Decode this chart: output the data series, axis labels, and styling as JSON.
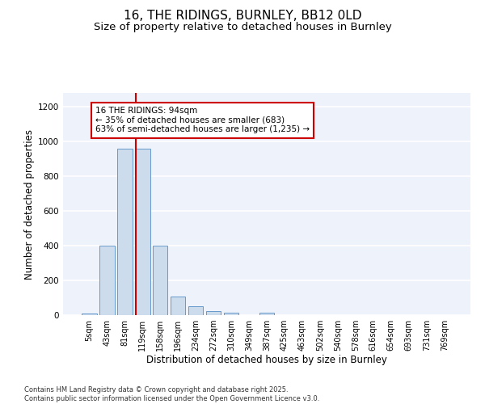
{
  "title_line1": "16, THE RIDINGS, BURNLEY, BB12 0LD",
  "title_line2": "Size of property relative to detached houses in Burnley",
  "xlabel": "Distribution of detached houses by size in Burnley",
  "ylabel": "Number of detached properties",
  "categories": [
    "5sqm",
    "43sqm",
    "81sqm",
    "119sqm",
    "158sqm",
    "196sqm",
    "234sqm",
    "272sqm",
    "310sqm",
    "349sqm",
    "387sqm",
    "425sqm",
    "463sqm",
    "502sqm",
    "540sqm",
    "578sqm",
    "616sqm",
    "654sqm",
    "693sqm",
    "731sqm",
    "769sqm"
  ],
  "values": [
    10,
    400,
    960,
    960,
    400,
    105,
    50,
    22,
    12,
    0,
    12,
    0,
    0,
    0,
    0,
    0,
    0,
    0,
    0,
    0,
    0
  ],
  "bar_color": "#ccdcec",
  "bar_edge_color": "#6699cc",
  "vline_color": "#cc0000",
  "vline_x_index": 2.62,
  "annotation_text": "16 THE RIDINGS: 94sqm\n← 35% of detached houses are smaller (683)\n63% of semi-detached houses are larger (1,235) →",
  "annotation_box_facecolor": "#ffffff",
  "annotation_box_edgecolor": "#cc0000",
  "ylim": [
    0,
    1280
  ],
  "yticks": [
    0,
    200,
    400,
    600,
    800,
    1000,
    1200
  ],
  "bg_color": "#eef2fa",
  "grid_color": "#ffffff",
  "footer_text": "Contains HM Land Registry data © Crown copyright and database right 2025.\nContains public sector information licensed under the Open Government Licence v3.0.",
  "title_fontsize": 11,
  "subtitle_fontsize": 9.5,
  "tick_fontsize": 7,
  "label_fontsize": 8.5,
  "annotation_fontsize": 7.5,
  "footer_fontsize": 6
}
